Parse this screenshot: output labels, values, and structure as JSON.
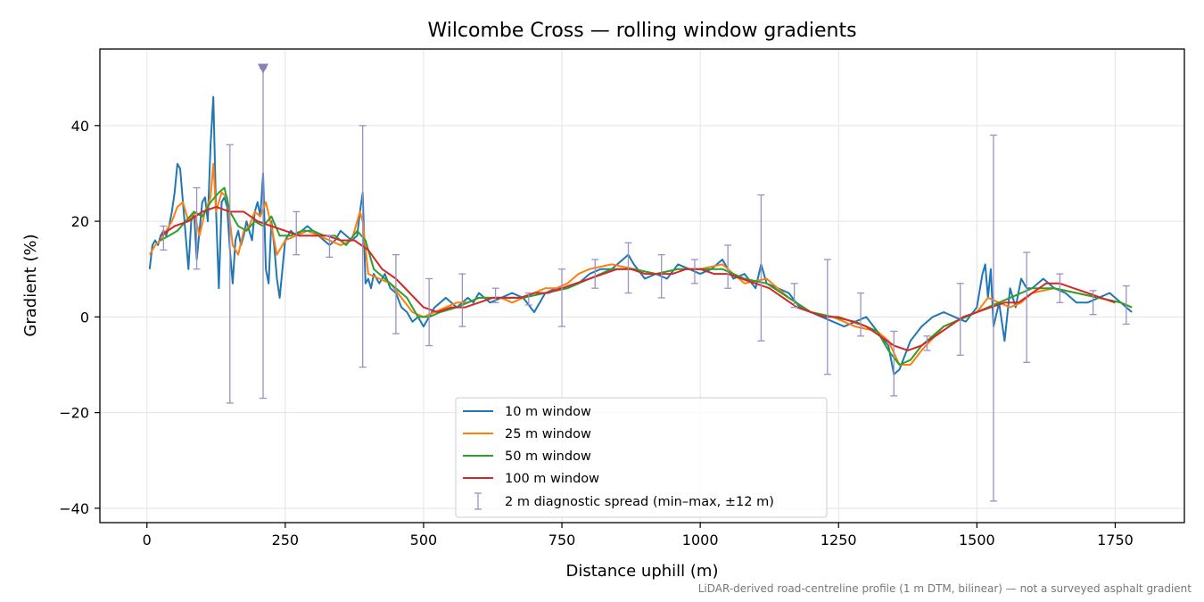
{
  "chart_data": {
    "type": "line",
    "title": "Wilcombe Cross — rolling window gradients",
    "xlabel": "Distance uphill (m)",
    "ylabel": "Gradient (%)",
    "xlim": [
      -85,
      1875
    ],
    "ylim": [
      -43,
      56
    ],
    "xticks": [
      0,
      250,
      500,
      750,
      1000,
      1250,
      1500,
      1750
    ],
    "yticks": [
      -40,
      -20,
      0,
      20,
      40
    ],
    "xtick_labels": [
      "0",
      "250",
      "500",
      "750",
      "1000",
      "1250",
      "1500",
      "1750"
    ],
    "ytick_labels": [
      "−40",
      "−20",
      "0",
      "20",
      "40"
    ],
    "grid": true,
    "legend_position": "lower center",
    "footnote": "LiDAR-derived road-centreline profile (1 m DTM, bilinear) — not a surveyed asphalt gradient",
    "series": [
      {
        "name": "10 m window",
        "color": "#1f77b4",
        "x": [
          5,
          10,
          15,
          20,
          25,
          30,
          35,
          40,
          45,
          50,
          55,
          60,
          65,
          70,
          75,
          80,
          85,
          90,
          95,
          100,
          105,
          110,
          115,
          120,
          125,
          130,
          135,
          140,
          145,
          150,
          155,
          160,
          165,
          170,
          175,
          180,
          185,
          190,
          195,
          200,
          205,
          210,
          215,
          220,
          225,
          230,
          235,
          240,
          250,
          260,
          270,
          280,
          290,
          300,
          310,
          320,
          330,
          340,
          350,
          360,
          370,
          380,
          385,
          390,
          395,
          400,
          405,
          410,
          420,
          430,
          440,
          450,
          460,
          470,
          480,
          490,
          500,
          510,
          520,
          530,
          540,
          550,
          560,
          570,
          580,
          590,
          600,
          620,
          640,
          660,
          680,
          700,
          720,
          740,
          760,
          780,
          800,
          820,
          840,
          860,
          870,
          880,
          900,
          920,
          940,
          960,
          980,
          1000,
          1020,
          1040,
          1060,
          1080,
          1100,
          1110,
          1120,
          1140,
          1160,
          1180,
          1200,
          1220,
          1240,
          1260,
          1280,
          1300,
          1320,
          1340,
          1350,
          1360,
          1380,
          1400,
          1420,
          1440,
          1460,
          1480,
          1500,
          1510,
          1515,
          1520,
          1525,
          1530,
          1540,
          1550,
          1560,
          1570,
          1580,
          1590,
          1600,
          1620,
          1640,
          1660,
          1680,
          1700,
          1720,
          1740,
          1760,
          1780
        ],
        "y": [
          10,
          15,
          16,
          15,
          17,
          18,
          17,
          19,
          22,
          26,
          32,
          31,
          24,
          17,
          10,
          20,
          22,
          12,
          18,
          24,
          25,
          20,
          36,
          46,
          22,
          6,
          24,
          25,
          23,
          14,
          7,
          16,
          18,
          15,
          17,
          20,
          18,
          16,
          22,
          24,
          21,
          30,
          10,
          7,
          20,
          15,
          8,
          4,
          16,
          18,
          17,
          18,
          19,
          18,
          17,
          16,
          15,
          16,
          18,
          17,
          16,
          17,
          22,
          26,
          7,
          8,
          6,
          9,
          7,
          9,
          6,
          5,
          2,
          1,
          -1,
          0,
          -2,
          0,
          2,
          3,
          4,
          3,
          2,
          3,
          4,
          3,
          5,
          3,
          4,
          5,
          4,
          1,
          5,
          6,
          6,
          7,
          9,
          10,
          10,
          12,
          13,
          11,
          8,
          9,
          8,
          11,
          10,
          9,
          10,
          12,
          8,
          9,
          6,
          11,
          7,
          6,
          5,
          2,
          1,
          0,
          -1,
          -2,
          -1,
          0,
          -3,
          -6,
          -12,
          -11,
          -5,
          -2,
          0,
          1,
          0,
          -1,
          2,
          9,
          11,
          4,
          10,
          -2,
          3,
          -5,
          6,
          2,
          8,
          6,
          6,
          8,
          6,
          5,
          3,
          3,
          4,
          5,
          3,
          1
        ]
      },
      {
        "name": "25 m window",
        "color": "#ff7f0e",
        "x": [
          5,
          15,
          25,
          35,
          45,
          55,
          65,
          75,
          85,
          95,
          105,
          115,
          120,
          125,
          135,
          145,
          155,
          165,
          175,
          185,
          195,
          205,
          215,
          225,
          235,
          250,
          270,
          290,
          310,
          330,
          350,
          370,
          385,
          390,
          400,
          420,
          440,
          460,
          480,
          500,
          520,
          540,
          560,
          580,
          600,
          620,
          640,
          660,
          680,
          700,
          720,
          740,
          760,
          780,
          800,
          840,
          880,
          920,
          960,
          1000,
          1040,
          1080,
          1120,
          1160,
          1200,
          1240,
          1280,
          1320,
          1340,
          1360,
          1380,
          1400,
          1440,
          1480,
          1500,
          1520,
          1540,
          1560,
          1580,
          1600,
          1640,
          1680,
          1720,
          1760,
          1780
        ],
        "y": [
          13,
          15,
          16,
          18,
          20,
          23,
          24,
          20,
          22,
          17,
          22,
          25,
          32,
          22,
          26,
          25,
          15,
          13,
          18,
          19,
          22,
          21,
          24,
          19,
          13,
          16,
          17,
          18,
          17,
          16,
          15,
          16,
          22,
          20,
          9,
          8,
          7,
          4,
          1,
          0,
          1,
          2,
          3,
          3,
          4,
          4,
          4,
          3,
          4,
          5,
          6,
          6,
          7,
          9,
          10,
          11,
          10,
          9,
          10,
          10,
          11,
          7,
          8,
          4,
          1,
          0,
          -2,
          -3,
          -5,
          -10,
          -10,
          -7,
          -2,
          0,
          1,
          4,
          3,
          2,
          3,
          5,
          6,
          5,
          4,
          3,
          2
        ]
      },
      {
        "name": "50 m window",
        "color": "#2ca02c",
        "x": [
          25,
          40,
          55,
          70,
          85,
          100,
          115,
          130,
          140,
          150,
          165,
          180,
          195,
          210,
          225,
          240,
          260,
          280,
          300,
          320,
          340,
          360,
          380,
          395,
          410,
          430,
          450,
          470,
          490,
          510,
          530,
          560,
          600,
          640,
          680,
          720,
          760,
          800,
          840,
          880,
          920,
          960,
          1000,
          1040,
          1080,
          1120,
          1160,
          1200,
          1240,
          1280,
          1320,
          1340,
          1360,
          1380,
          1400,
          1440,
          1480,
          1520,
          1560,
          1600,
          1640,
          1680,
          1720,
          1760,
          1780
        ],
        "y": [
          16,
          17,
          18,
          20,
          22,
          21,
          24,
          26,
          27,
          22,
          19,
          18,
          20,
          19,
          21,
          17,
          17,
          18,
          18,
          17,
          17,
          15,
          18,
          16,
          10,
          8,
          6,
          4,
          0,
          0,
          1,
          2,
          4,
          4,
          4,
          5,
          6,
          8,
          10,
          10,
          9,
          10,
          10,
          10,
          8,
          7,
          4,
          1,
          0,
          -1,
          -3,
          -7,
          -10,
          -9,
          -6,
          -2,
          0,
          2,
          4,
          6,
          6,
          5,
          4,
          3,
          2
        ]
      },
      {
        "name": "100 m window",
        "color": "#d62728",
        "x": [
          25,
          50,
          75,
          100,
          125,
          150,
          175,
          200,
          225,
          250,
          275,
          300,
          325,
          350,
          375,
          400,
          425,
          450,
          475,
          500,
          525,
          550,
          575,
          600,
          625,
          650,
          675,
          700,
          725,
          750,
          775,
          800,
          825,
          850,
          875,
          900,
          925,
          950,
          975,
          1000,
          1025,
          1050,
          1075,
          1100,
          1125,
          1150,
          1175,
          1200,
          1225,
          1250,
          1275,
          1300,
          1325,
          1350,
          1375,
          1400,
          1425,
          1450,
          1475,
          1500,
          1525,
          1550,
          1575,
          1600,
          1625,
          1650,
          1675,
          1700,
          1725,
          1750
        ],
        "y": [
          17,
          19,
          20,
          22,
          23,
          22,
          22,
          20,
          19,
          18,
          17,
          17,
          17,
          16,
          16,
          14,
          10,
          8,
          5,
          2,
          1,
          2,
          2,
          3,
          4,
          4,
          4,
          5,
          5,
          6,
          7,
          8,
          9,
          10,
          10,
          9,
          9,
          9,
          10,
          10,
          9,
          9,
          8,
          7,
          6,
          4,
          2,
          1,
          0,
          0,
          -1,
          -2,
          -4,
          -6,
          -7,
          -6,
          -4,
          -2,
          0,
          1,
          2,
          3,
          3,
          5,
          7,
          7,
          6,
          5,
          4,
          3
        ]
      }
    ],
    "errorbars": {
      "name": "2 m diagnostic spread (min–max, ±12 m)",
      "color": "#9b92c2",
      "points": [
        {
          "x": 30,
          "min": 14,
          "max": 19
        },
        {
          "x": 90,
          "min": 10,
          "max": 27
        },
        {
          "x": 150,
          "min": -18,
          "max": 36
        },
        {
          "x": 210,
          "min": -17,
          "max": 52
        },
        {
          "x": 270,
          "min": 13,
          "max": 22
        },
        {
          "x": 330,
          "min": 12.5,
          "max": 17
        },
        {
          "x": 390,
          "min": -10.5,
          "max": 40
        },
        {
          "x": 450,
          "min": -3.5,
          "max": 13
        },
        {
          "x": 510,
          "min": -6,
          "max": 8
        },
        {
          "x": 570,
          "min": -2,
          "max": 9
        },
        {
          "x": 630,
          "min": 3,
          "max": 6
        },
        {
          "x": 690,
          "min": 2.5,
          "max": 5
        },
        {
          "x": 750,
          "min": -2,
          "max": 10
        },
        {
          "x": 810,
          "min": 6,
          "max": 12
        },
        {
          "x": 870,
          "min": 5,
          "max": 15.5
        },
        {
          "x": 930,
          "min": 4,
          "max": 13
        },
        {
          "x": 990,
          "min": 7,
          "max": 12
        },
        {
          "x": 1050,
          "min": 6,
          "max": 15
        },
        {
          "x": 1110,
          "min": -5,
          "max": 25.5
        },
        {
          "x": 1170,
          "min": 2,
          "max": 7
        },
        {
          "x": 1230,
          "min": -12,
          "max": 12
        },
        {
          "x": 1290,
          "min": -4,
          "max": 5
        },
        {
          "x": 1350,
          "min": -16.5,
          "max": -3
        },
        {
          "x": 1410,
          "min": -7,
          "max": -4
        },
        {
          "x": 1470,
          "min": -8,
          "max": 7
        },
        {
          "x": 1530,
          "min": -38.5,
          "max": 38
        },
        {
          "x": 1590,
          "min": -9.5,
          "max": 13.5
        },
        {
          "x": 1650,
          "min": 3,
          "max": 9
        },
        {
          "x": 1710,
          "min": 0.5,
          "max": 5.5
        },
        {
          "x": 1770,
          "min": -1.5,
          "max": 6.5
        }
      ],
      "clipped_marker": {
        "x": 210,
        "y": 52
      }
    }
  }
}
